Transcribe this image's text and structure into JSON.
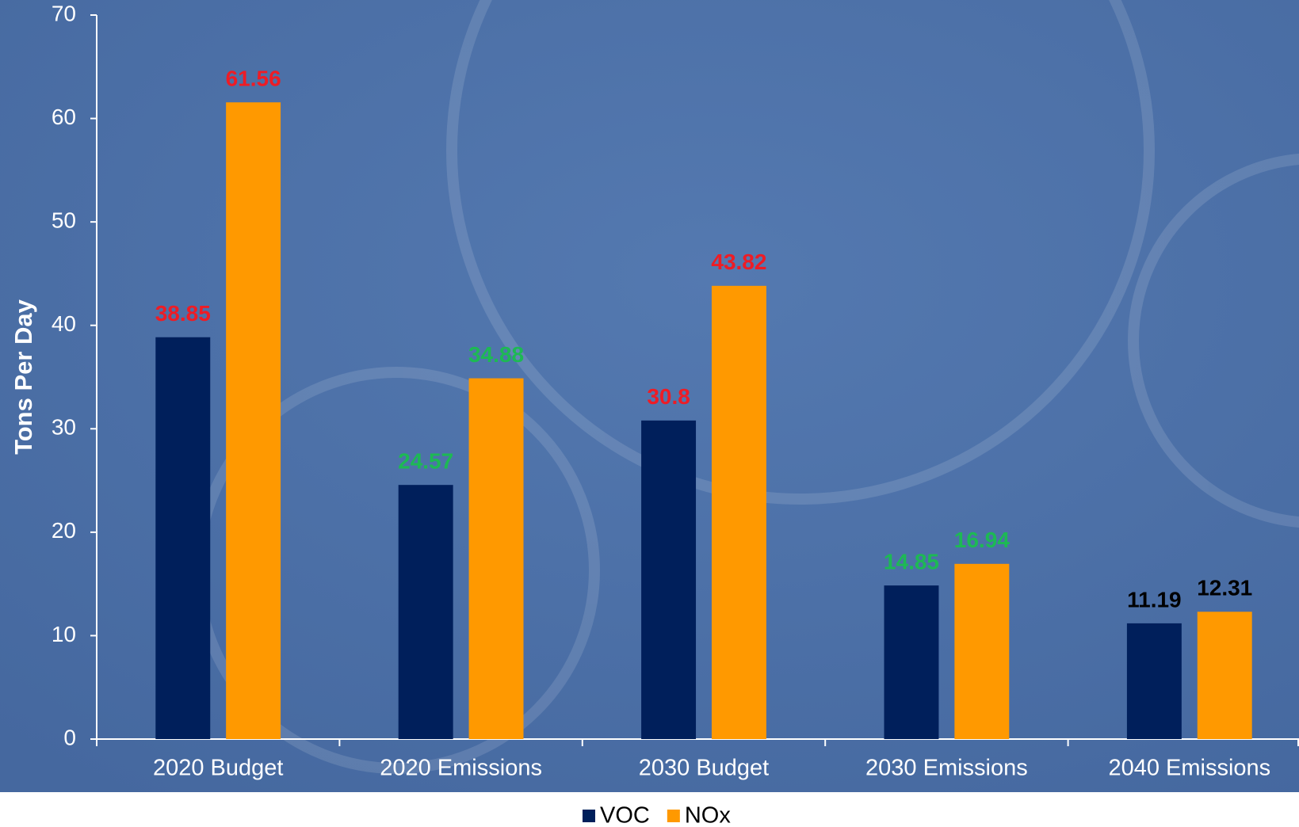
{
  "chart_data": {
    "type": "bar",
    "y_label": "Tons Per Day",
    "categories": [
      "2020 Budget",
      "2020 Emissions",
      "2030 Budget",
      "2030 Emissions",
      "2040 Emissions"
    ],
    "series": [
      {
        "name": "VOC",
        "color": "#001f5b",
        "values": [
          38.85,
          24.57,
          30.8,
          14.85,
          11.19
        ],
        "value_label_colors": [
          "#ee1c25",
          "#1db954",
          "#ee1c25",
          "#1db954",
          "#000000"
        ]
      },
      {
        "name": "NOx",
        "color": "#ff9900",
        "values": [
          61.56,
          34.88,
          43.82,
          16.94,
          12.31
        ],
        "value_label_colors": [
          "#ee1c25",
          "#1db954",
          "#ee1c25",
          "#1db954",
          "#000000"
        ]
      }
    ],
    "ylim": [
      0,
      70
    ],
    "yticks": [
      0,
      10,
      20,
      30,
      40,
      50,
      60,
      70
    ],
    "grid": false,
    "legend": "bottom"
  }
}
